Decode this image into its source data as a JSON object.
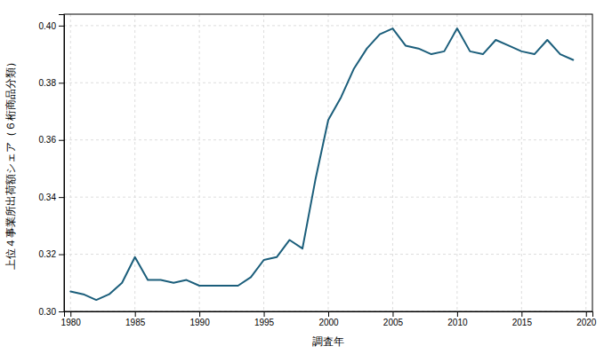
{
  "chart_data": {
    "type": "line",
    "xlabel": "調査年",
    "ylabel": "上位４事業所出荷額シェア（６桁商品分類）",
    "x": [
      1980,
      1981,
      1982,
      1983,
      1984,
      1985,
      1986,
      1987,
      1988,
      1989,
      1990,
      1991,
      1992,
      1993,
      1994,
      1995,
      1996,
      1997,
      1998,
      1999,
      2000,
      2001,
      2002,
      2003,
      2004,
      2005,
      2006,
      2007,
      2008,
      2009,
      2010,
      2011,
      2012,
      2013,
      2014,
      2015,
      2016,
      2017,
      2018,
      2019
    ],
    "values": [
      0.307,
      0.306,
      0.304,
      0.306,
      0.31,
      0.319,
      0.311,
      0.311,
      0.31,
      0.311,
      0.309,
      0.309,
      0.309,
      0.309,
      0.312,
      0.318,
      0.319,
      0.325,
      0.322,
      0.346,
      0.367,
      0.375,
      0.385,
      0.392,
      0.397,
      0.399,
      0.393,
      0.392,
      0.39,
      0.391,
      0.399,
      0.391,
      0.39,
      0.395,
      0.393,
      0.391,
      0.39,
      0.395,
      0.39,
      0.388
    ],
    "color": "#1B5E7B",
    "xlim": [
      1979.5,
      2020.5
    ],
    "xticks": [
      1980,
      1985,
      1990,
      1995,
      2000,
      2005,
      2010,
      2015,
      2020
    ],
    "ylim": [
      0.3,
      0.404
    ],
    "yticks": [
      {
        "value": 0.3,
        "label": "0.30"
      },
      0.32,
      0.34,
      0.36,
      0.38,
      {
        "value": 0.4,
        "label": "0.40"
      }
    ],
    "grid": true
  }
}
